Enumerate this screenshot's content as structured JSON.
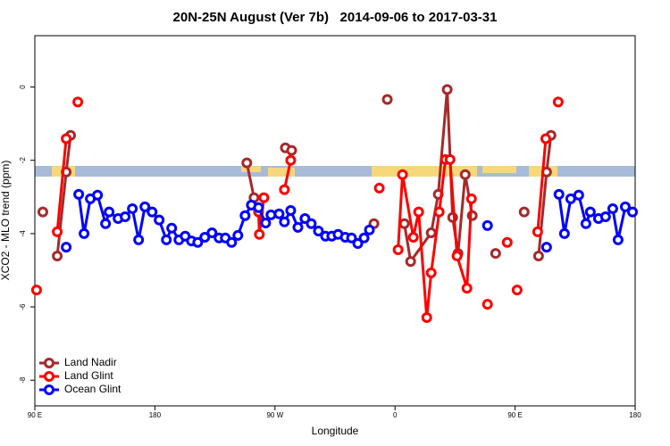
{
  "chart_data": {
    "type": "line",
    "title": "20N-25N August (Ver 7b)   2014-09-06 to 2017-03-31",
    "xlabel": "Longitude",
    "ylabel": "XCO2 - MLO trend (ppm)",
    "xlim": [
      90,
      540
    ],
    "ylim": [
      -8.7,
      1.4
    ],
    "xticks": [
      {
        "value": 90,
        "label": "90 E"
      },
      {
        "value": 180,
        "label": "180"
      },
      {
        "value": 270,
        "label": "90 W"
      },
      {
        "value": 360,
        "label": "0"
      },
      {
        "value": 450,
        "label": "90 E"
      },
      {
        "value": 540,
        "label": "180"
      }
    ],
    "yticks": [
      0,
      -2,
      -4,
      -6,
      -8
    ],
    "legend": "bottom-left",
    "series": [
      {
        "name": "Land Nadir",
        "color": "#a52a2a",
        "x": [
          96.0,
          null,
          106.8,
          113.5,
          116.8,
          null,
          248.9,
          254.3,
          null,
          277.8,
          282.5,
          null,
          344.2,
          null,
          354.2,
          null,
          367.0,
          371.7,
          387.1,
          392.4,
          399.1,
          403.2,
          407.2,
          412.6,
          417.9,
          null,
          435.4,
          null,
          456.8,
          null,
          467.6,
          473.6,
          476.9
        ],
        "values": [
          -3.41,
          null,
          -4.61,
          -2.32,
          -1.32,
          null,
          -2.07,
          -3.02,
          null,
          -1.66,
          -1.73,
          null,
          -3.73,
          null,
          -0.34,
          null,
          -3.73,
          -4.76,
          -3.98,
          -2.93,
          -0.07,
          -3.56,
          -4.54,
          -2.39,
          -3.51,
          null,
          -4.54,
          null,
          -3.41,
          null,
          -4.61,
          -2.32,
          -1.32
        ]
      },
      {
        "name": "Land Glint",
        "color": "#ff0000",
        "x": [
          91.3,
          null,
          106.8,
          113.5,
          null,
          122.2,
          null,
          257.7,
          258.3,
          261.7,
          null,
          277.1,
          281.8,
          null,
          348.2,
          null,
          362.3,
          365.6,
          373.7,
          377.7,
          383.8,
          387.1,
          393.1,
          397.8,
          401.2,
          406.5,
          413.9,
          417.3,
          null,
          429.3,
          null,
          444.1,
          null,
          451.5,
          null,
          466.9,
          473.0,
          null,
          482.3
        ],
        "values": [
          -5.54,
          null,
          -3.95,
          -1.41,
          null,
          -0.41,
          null,
          -3.41,
          -4.02,
          -3.02,
          null,
          -2.8,
          -2.0,
          null,
          -2.76,
          null,
          -4.44,
          -2.39,
          -4.1,
          -3.41,
          -6.29,
          -5.07,
          -3.41,
          -1.98,
          -1.98,
          -4.61,
          -5.49,
          -3.05,
          null,
          -5.93,
          null,
          -4.24,
          null,
          -5.54,
          null,
          -3.95,
          -1.41,
          null,
          -0.41
        ]
      },
      {
        "name": "Ocean Glint",
        "color": "#0000ff",
        "x": [
          113.5,
          null,
          122.9,
          126.9,
          131.6,
          137.0,
          143.0,
          145.7,
          152.4,
          157.7,
          163.1,
          167.8,
          172.5,
          177.9,
          183.2,
          188.6,
          192.6,
          198.0,
          202.7,
          207.4,
          212.1,
          217.4,
          222.8,
          228.1,
          232.8,
          237.5,
          242.2,
          247.6,
          252.3,
          257.7,
          263.0,
          267.0,
          273.1,
          277.1,
          281.8,
          287.2,
          292.5,
          297.2,
          302.6,
          307.9,
          312.6,
          317.3,
          322.7,
          327.4,
          332.1,
          336.8,
          340.8,
          null,
          429.3,
          null,
          473.6,
          null,
          482.9,
          487.0,
          491.7,
          497.7,
          503.1,
          506.4,
          512.5,
          517.8,
          523.2,
          527.2,
          532.6,
          538.0
        ],
        "values": [
          -4.37,
          null,
          -2.93,
          -4.0,
          -3.05,
          -2.95,
          -3.73,
          -3.41,
          -3.59,
          -3.54,
          -3.32,
          -4.17,
          -3.27,
          -3.41,
          -3.63,
          -4.17,
          -3.85,
          -4.17,
          -4.07,
          -4.2,
          -4.24,
          -4.1,
          -3.98,
          -4.12,
          -4.12,
          -4.24,
          -4.05,
          -3.51,
          -3.22,
          -3.29,
          -3.71,
          -3.49,
          -3.46,
          -3.68,
          -3.37,
          -3.83,
          -3.59,
          -3.73,
          -3.93,
          -4.07,
          -4.07,
          -4.02,
          -4.1,
          -4.12,
          -4.27,
          -4.12,
          -3.9,
          null,
          -3.78,
          null,
          -4.37,
          null,
          -2.93,
          -4.0,
          -3.05,
          -2.95,
          -3.73,
          -3.41,
          -3.59,
          -3.54,
          -3.32,
          -4.17,
          -3.27,
          -3.41
        ]
      }
    ]
  }
}
